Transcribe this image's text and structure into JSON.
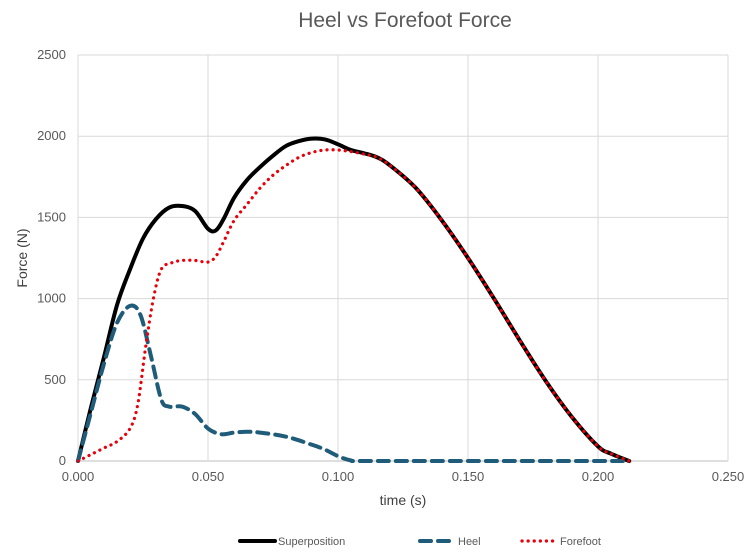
{
  "chart_data": {
    "type": "line",
    "title": "Heel vs Forefoot Force",
    "xlabel": "time (s)",
    "ylabel": "Force (N)",
    "xlim": [
      0,
      0.25
    ],
    "ylim": [
      0,
      2500
    ],
    "xticks": [
      "0.000",
      "0.050",
      "0.100",
      "0.150",
      "0.200",
      "0.250"
    ],
    "yticks": [
      "0",
      "500",
      "1000",
      "1500",
      "2000",
      "2500"
    ],
    "grid": true,
    "legend_position": "bottom",
    "series": [
      {
        "name": "Superposition",
        "color": "#000000",
        "style": "solid",
        "x": [
          0,
          0.005,
          0.01,
          0.015,
          0.02,
          0.025,
          0.03,
          0.035,
          0.04,
          0.045,
          0.05,
          0.053,
          0.056,
          0.06,
          0.065,
          0.07,
          0.075,
          0.08,
          0.085,
          0.09,
          0.095,
          0.1,
          0.105,
          0.11,
          0.115,
          0.12,
          0.13,
          0.14,
          0.15,
          0.16,
          0.17,
          0.18,
          0.19,
          0.2,
          0.205,
          0.212
        ],
        "y": [
          0,
          330,
          640,
          960,
          1180,
          1370,
          1490,
          1560,
          1570,
          1540,
          1430,
          1420,
          1490,
          1620,
          1730,
          1810,
          1880,
          1940,
          1970,
          1985,
          1980,
          1950,
          1915,
          1895,
          1870,
          1820,
          1680,
          1480,
          1250,
          1000,
          740,
          490,
          270,
          90,
          45,
          0
        ]
      },
      {
        "name": "Heel",
        "color": "#1f5c7a",
        "style": "dashed",
        "x": [
          0,
          0.005,
          0.01,
          0.015,
          0.02,
          0.024,
          0.028,
          0.032,
          0.035,
          0.04,
          0.045,
          0.05,
          0.055,
          0.06,
          0.065,
          0.07,
          0.08,
          0.09,
          0.095,
          0.1,
          0.105,
          0.11,
          0.15,
          0.212
        ],
        "y": [
          0,
          300,
          600,
          850,
          955,
          900,
          650,
          380,
          335,
          335,
          290,
          200,
          165,
          175,
          180,
          175,
          150,
          100,
          70,
          30,
          3,
          0,
          0,
          0
        ]
      },
      {
        "name": "Forefoot",
        "color": "#e8000b",
        "style": "dotted",
        "x": [
          0,
          0.005,
          0.01,
          0.015,
          0.02,
          0.023,
          0.026,
          0.029,
          0.032,
          0.036,
          0.04,
          0.045,
          0.05,
          0.053,
          0.056,
          0.06,
          0.065,
          0.07,
          0.075,
          0.08,
          0.085,
          0.09,
          0.095,
          0.1,
          0.105,
          0.11,
          0.115,
          0.12,
          0.13,
          0.14,
          0.15,
          0.16,
          0.17,
          0.18,
          0.19,
          0.2,
          0.205,
          0.212
        ],
        "y": [
          0,
          40,
          80,
          120,
          200,
          350,
          700,
          1000,
          1180,
          1220,
          1235,
          1235,
          1225,
          1260,
          1350,
          1480,
          1580,
          1680,
          1760,
          1820,
          1870,
          1900,
          1915,
          1915,
          1905,
          1890,
          1870,
          1820,
          1680,
          1480,
          1250,
          1000,
          740,
          490,
          270,
          90,
          45,
          0
        ]
      }
    ]
  }
}
